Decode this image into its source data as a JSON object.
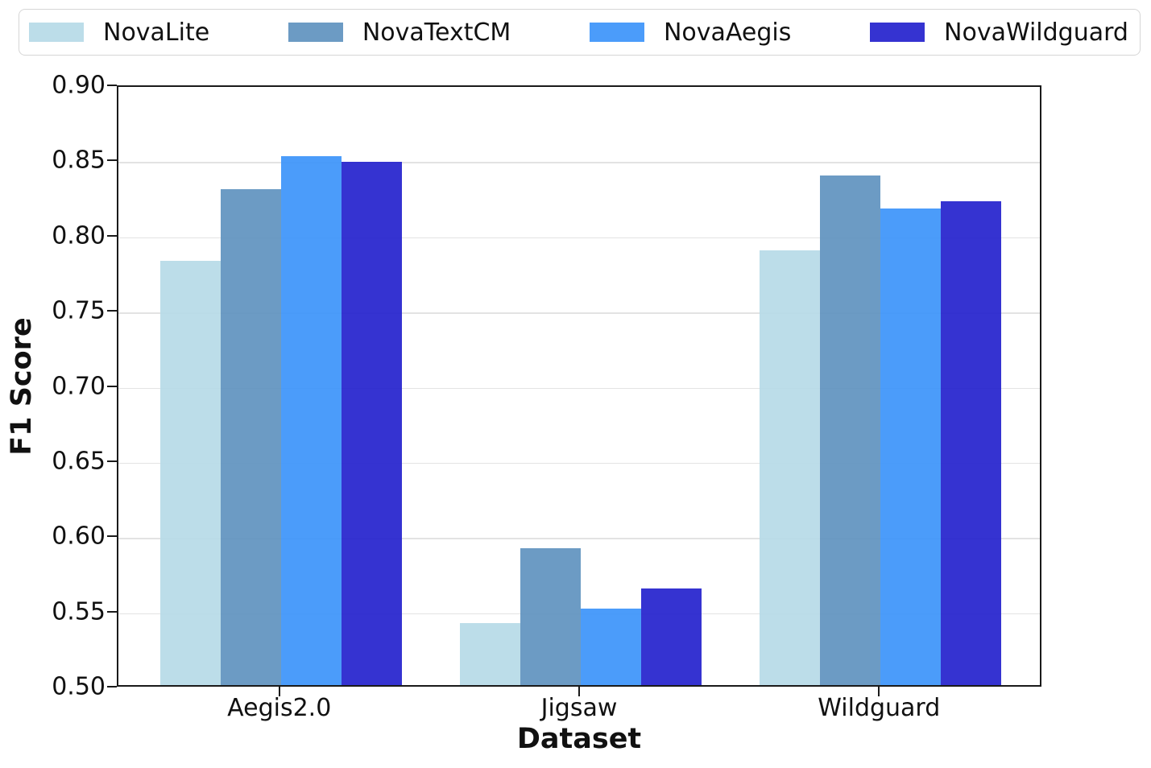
{
  "chart_data": {
    "type": "bar",
    "title": "",
    "xlabel": "Dataset",
    "ylabel": "F1 Score",
    "ylim": [
      0.5,
      0.9
    ],
    "ytick_step": 0.05,
    "ytick_labels": [
      "0.50",
      "0.55",
      "0.60",
      "0.65",
      "0.70",
      "0.75",
      "0.80",
      "0.85",
      "0.90"
    ],
    "categories": [
      "Aegis2.0",
      "Jigsaw",
      "Wildguard"
    ],
    "series": [
      {
        "name": "NovaLite",
        "color": "#b7dae7",
        "values": [
          0.782,
          0.541,
          0.789
        ]
      },
      {
        "name": "NovaTextCM",
        "color": "#6193bf",
        "values": [
          0.83,
          0.591,
          0.839
        ]
      },
      {
        "name": "NovaAegis",
        "color": "#3d94fa",
        "values": [
          0.852,
          0.551,
          0.817
        ]
      },
      {
        "name": "NovaWildguard",
        "color": "#2623cd",
        "values": [
          0.848,
          0.564,
          0.822
        ]
      }
    ],
    "legend_position": "top",
    "grid": true,
    "colors": {
      "spine": "#1a1a1a",
      "gridline": "#e3e3e3",
      "text": "#111111",
      "legend_border": "#d6d6d6"
    }
  }
}
